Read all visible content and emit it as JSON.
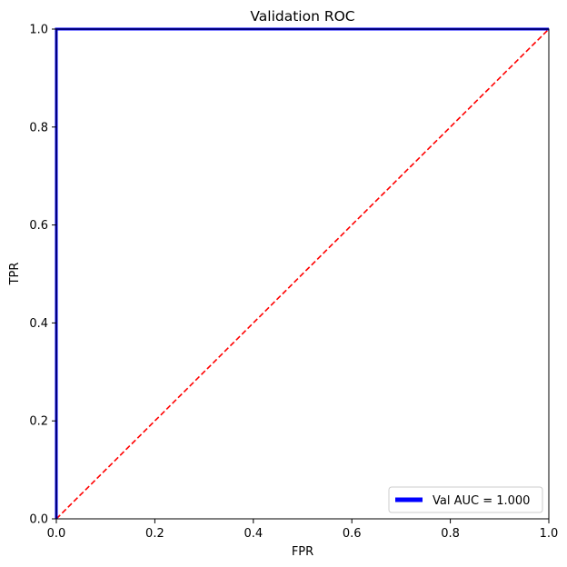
{
  "chart_data": {
    "type": "line",
    "title": "Validation ROC",
    "xlabel": "FPR",
    "ylabel": "TPR",
    "xlim": [
      0,
      1
    ],
    "ylim": [
      0,
      1
    ],
    "x_ticks": [
      "0.0",
      "0.2",
      "0.4",
      "0.6",
      "0.8",
      "1.0"
    ],
    "y_ticks": [
      "0.0",
      "0.2",
      "0.4",
      "0.6",
      "0.8",
      "1.0"
    ],
    "grid": false,
    "legend_position": "bottom-right",
    "series": [
      {
        "name": "Val AUC = 1.000",
        "color": "#0000ff",
        "style": "solid",
        "x": [
          0.0,
          0.0,
          1.0
        ],
        "y": [
          0.0,
          1.0,
          1.0
        ]
      },
      {
        "color": "#ff0000",
        "style": "dashed",
        "x": [
          0.0,
          1.0
        ],
        "y": [
          0.0,
          1.0
        ]
      }
    ]
  }
}
